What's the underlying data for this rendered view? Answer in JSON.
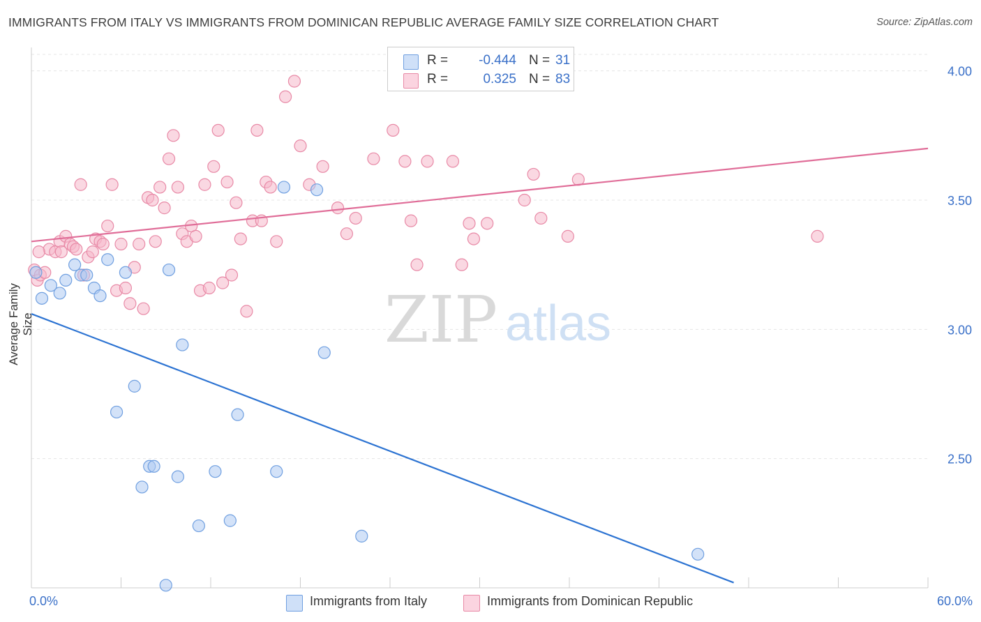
{
  "header": {
    "title": "IMMIGRANTS FROM ITALY VS IMMIGRANTS FROM DOMINICAN REPUBLIC AVERAGE FAMILY SIZE CORRELATION CHART",
    "source": "Source: ZipAtlas.com"
  },
  "watermark": {
    "zip": "ZIP",
    "atlas": "atlas"
  },
  "legend": {
    "r_label": "R =",
    "n_label": "N =",
    "rows": [
      {
        "r": "-0.444",
        "n": "31",
        "color": "#aecbf3"
      },
      {
        "r": "0.325",
        "n": "83",
        "color": "#f5b8cb"
      }
    ]
  },
  "colors": {
    "italy_fill": "#aecbf3",
    "italy_stroke": "#6f9fe0",
    "italy_line": "#2c73d2",
    "dr_fill": "#f5b8cb",
    "dr_stroke": "#e889a6",
    "dr_line": "#e06d98",
    "axis_text": "#3a70c8",
    "grid": "#e5e5e5"
  },
  "chart_data": {
    "type": "scatter",
    "title": "IMMIGRANTS FROM ITALY VS IMMIGRANTS FROM DOMINICAN REPUBLIC AVERAGE FAMILY SIZE CORRELATION CHART",
    "xlabel": "",
    "ylabel": "Average Family Size",
    "xlim": [
      0,
      60
    ],
    "ylim": [
      2.0,
      4.08
    ],
    "x_tick_labels": [
      "0.0%",
      "60.0%"
    ],
    "y_ticks": [
      2.5,
      3.0,
      3.5,
      4.0
    ],
    "y_tick_labels": [
      "2.50",
      "3.00",
      "3.50",
      "4.00"
    ],
    "grid": true,
    "legend_position": "top-center",
    "series": [
      {
        "name": "Immigrants from Italy",
        "r": -0.444,
        "n": 31,
        "trend": {
          "x": [
            0,
            47
          ],
          "y": [
            3.06,
            2.02
          ]
        },
        "points": [
          [
            0.3,
            3.22
          ],
          [
            0.7,
            3.12
          ],
          [
            1.3,
            3.17
          ],
          [
            1.9,
            3.14
          ],
          [
            2.3,
            3.19
          ],
          [
            2.9,
            3.25
          ],
          [
            3.3,
            3.21
          ],
          [
            3.7,
            3.21
          ],
          [
            4.2,
            3.16
          ],
          [
            4.6,
            3.13
          ],
          [
            5.1,
            3.27
          ],
          [
            5.7,
            2.68
          ],
          [
            6.3,
            3.22
          ],
          [
            6.9,
            2.78
          ],
          [
            7.4,
            2.39
          ],
          [
            7.9,
            2.47
          ],
          [
            8.2,
            2.47
          ],
          [
            9.0,
            2.01
          ],
          [
            9.2,
            3.23
          ],
          [
            9.8,
            2.43
          ],
          [
            10.1,
            2.94
          ],
          [
            11.2,
            2.24
          ],
          [
            12.3,
            2.45
          ],
          [
            13.3,
            2.26
          ],
          [
            13.8,
            2.67
          ],
          [
            16.4,
            2.45
          ],
          [
            16.9,
            3.55
          ],
          [
            19.1,
            3.54
          ],
          [
            19.6,
            2.91
          ],
          [
            22.1,
            2.2
          ],
          [
            44.6,
            2.13
          ]
        ]
      },
      {
        "name": "Immigrants from Dominican Republic",
        "r": 0.325,
        "n": 83,
        "trend": {
          "x": [
            0,
            60
          ],
          "y": [
            3.34,
            3.7
          ]
        },
        "points": [
          [
            0.2,
            3.23
          ],
          [
            0.4,
            3.19
          ],
          [
            0.6,
            3.21
          ],
          [
            0.9,
            3.22
          ],
          [
            1.2,
            3.31
          ],
          [
            1.6,
            3.3
          ],
          [
            1.9,
            3.34
          ],
          [
            2.3,
            3.36
          ],
          [
            2.6,
            3.33
          ],
          [
            2.8,
            3.32
          ],
          [
            3.0,
            3.31
          ],
          [
            3.3,
            3.56
          ],
          [
            3.5,
            3.21
          ],
          [
            3.8,
            3.28
          ],
          [
            4.1,
            3.3
          ],
          [
            4.3,
            3.35
          ],
          [
            4.6,
            3.34
          ],
          [
            4.8,
            3.33
          ],
          [
            5.1,
            3.4
          ],
          [
            5.4,
            3.56
          ],
          [
            5.7,
            3.15
          ],
          [
            6.0,
            3.33
          ],
          [
            6.3,
            3.16
          ],
          [
            6.6,
            3.1
          ],
          [
            6.9,
            3.24
          ],
          [
            7.2,
            3.33
          ],
          [
            7.5,
            3.08
          ],
          [
            7.8,
            3.51
          ],
          [
            8.1,
            3.5
          ],
          [
            8.3,
            3.34
          ],
          [
            8.6,
            3.55
          ],
          [
            8.9,
            3.47
          ],
          [
            9.2,
            3.66
          ],
          [
            9.5,
            3.75
          ],
          [
            9.8,
            3.55
          ],
          [
            10.1,
            3.37
          ],
          [
            10.4,
            3.34
          ],
          [
            10.7,
            3.4
          ],
          [
            11.0,
            3.36
          ],
          [
            11.3,
            3.15
          ],
          [
            11.6,
            3.56
          ],
          [
            11.9,
            3.16
          ],
          [
            12.2,
            3.63
          ],
          [
            12.5,
            3.77
          ],
          [
            12.8,
            3.18
          ],
          [
            13.1,
            3.57
          ],
          [
            13.4,
            3.21
          ],
          [
            13.7,
            3.49
          ],
          [
            14.0,
            3.35
          ],
          [
            14.4,
            3.07
          ],
          [
            14.8,
            3.42
          ],
          [
            15.1,
            3.77
          ],
          [
            15.4,
            3.42
          ],
          [
            15.7,
            3.57
          ],
          [
            16.0,
            3.55
          ],
          [
            16.4,
            3.34
          ],
          [
            17.0,
            3.9
          ],
          [
            17.6,
            3.96
          ],
          [
            18.0,
            3.71
          ],
          [
            18.6,
            3.56
          ],
          [
            19.5,
            3.63
          ],
          [
            20.5,
            3.47
          ],
          [
            21.1,
            3.37
          ],
          [
            21.7,
            3.43
          ],
          [
            22.9,
            3.66
          ],
          [
            24.2,
            3.77
          ],
          [
            25.0,
            3.65
          ],
          [
            25.4,
            3.42
          ],
          [
            25.8,
            3.25
          ],
          [
            26.5,
            3.65
          ],
          [
            28.2,
            3.65
          ],
          [
            28.8,
            3.25
          ],
          [
            29.3,
            3.41
          ],
          [
            29.6,
            3.35
          ],
          [
            30.5,
            3.41
          ],
          [
            33.0,
            3.5
          ],
          [
            33.6,
            3.6
          ],
          [
            34.1,
            3.43
          ],
          [
            35.9,
            3.36
          ],
          [
            36.6,
            3.58
          ],
          [
            52.6,
            3.36
          ],
          [
            0.5,
            3.3
          ],
          [
            2.0,
            3.3
          ]
        ]
      }
    ]
  },
  "bottom_legend": [
    "Immigrants from Italy",
    "Immigrants from Dominican Republic"
  ]
}
